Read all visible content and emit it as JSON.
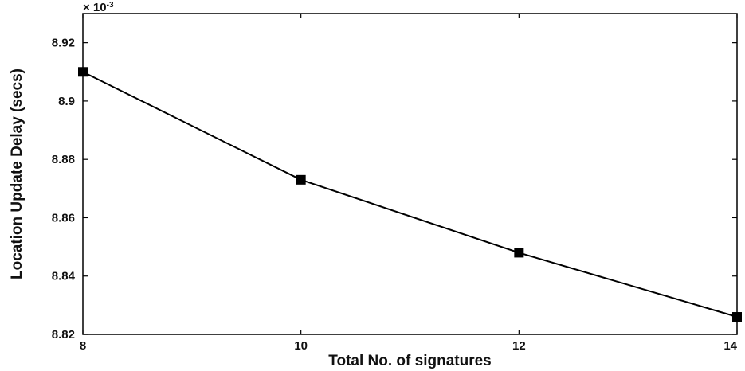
{
  "chart_data": {
    "type": "line",
    "xlabel": "Total No. of signatures",
    "ylabel": "Location Update Delay (secs)",
    "y_exponent_label": "× 10",
    "y_exponent_power": "-3",
    "xlim": [
      8,
      14
    ],
    "ylim": [
      8.82,
      8.93
    ],
    "x_ticks": [
      "8",
      "10",
      "12",
      "14"
    ],
    "y_ticks": [
      "8.82",
      "8.84",
      "8.86",
      "8.88",
      "8.9",
      "8.92"
    ],
    "grid": false,
    "series": [
      {
        "x": [
          8,
          10,
          12,
          14
        ],
        "values": [
          8.91,
          8.873,
          8.848,
          8.826
        ],
        "color": "#000000",
        "marker": "square"
      }
    ]
  }
}
